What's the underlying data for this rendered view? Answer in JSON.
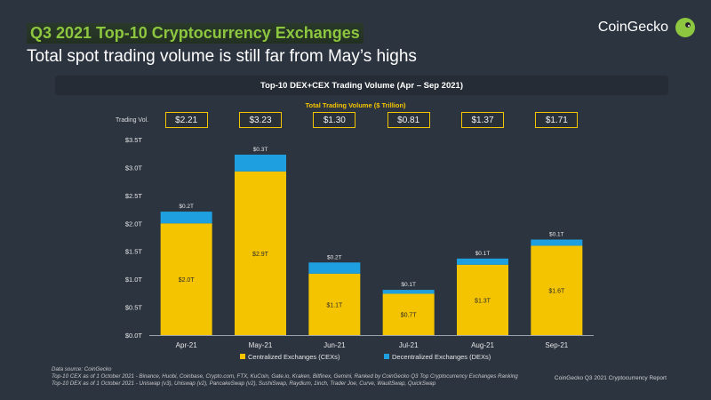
{
  "header": {
    "headline": "Q3 2021 Top-10 Cryptocurrency Exchanges",
    "subtitle": "Total spot trading volume is still far from May’s highs",
    "brand": "CoinGecko"
  },
  "colors": {
    "background": "#2c3440",
    "cex": "#f5c400",
    "dex": "#1e9fe0",
    "headline": "#8dc63f"
  },
  "chart_data": {
    "type": "bar",
    "stacked": true,
    "title": "Top-10 DEX+CEX Trading Volume (Apr – Sep 2021)",
    "total_volume_title": "Total Trading Volume ($ Trillion)",
    "total_volume_label": "Trading Vol.",
    "categories": [
      "Apr-21",
      "May-21",
      "Jun-21",
      "Jul-21",
      "Aug-21",
      "Sep-21"
    ],
    "totals": [
      "$2.21",
      "$3.23",
      "$1.30",
      "$0.81",
      "$1.37",
      "$1.71"
    ],
    "series": [
      {
        "name": "Centralized Exchanges (CEXs)",
        "values": [
          2.0,
          2.93,
          1.1,
          0.74,
          1.26,
          1.6
        ],
        "labels": [
          "$2.0T",
          "$2.9T",
          "$1.1T",
          "$0.7T",
          "$1.3T",
          "$1.6T"
        ]
      },
      {
        "name": "Decentralized Exchanges (DEXs)",
        "values": [
          0.21,
          0.3,
          0.2,
          0.07,
          0.11,
          0.11
        ],
        "labels": [
          "$0.2T",
          "$0.3T",
          "$0.2T",
          "$0.1T",
          "$0.1T",
          "$0.1T"
        ]
      }
    ],
    "yticks": [
      "$0.0T",
      "$0.5T",
      "$1.0T",
      "$1.5T",
      "$2.0T",
      "$2.5T",
      "$3.0T",
      "$3.5T"
    ],
    "ylim": [
      0,
      3.5
    ],
    "legend": "bottom-center"
  },
  "footnotes": [
    "Data source: CoinGecko",
    "Top-10 CEX as of 1 October 2021 - Binance, Huobi, Coinbase, Crypto.com, FTX, KuCoin, Gate.io, Kraken, Bitfinex, Gemini, Ranked by CoinGecko Q3 Top Cryptocurrency Exchanges Ranking",
    "Top-10 DEX as of 1 October 2021 - Uniswap (v3), Uniswap (v2), PancakeSwap (v2), SushiSwap, Raydium, 1inch, Trader Joe, Curve, WaultSwap, QuickSwap"
  ],
  "report_label": "CoinGecko Q3 2021 Cryptocurrency Report"
}
